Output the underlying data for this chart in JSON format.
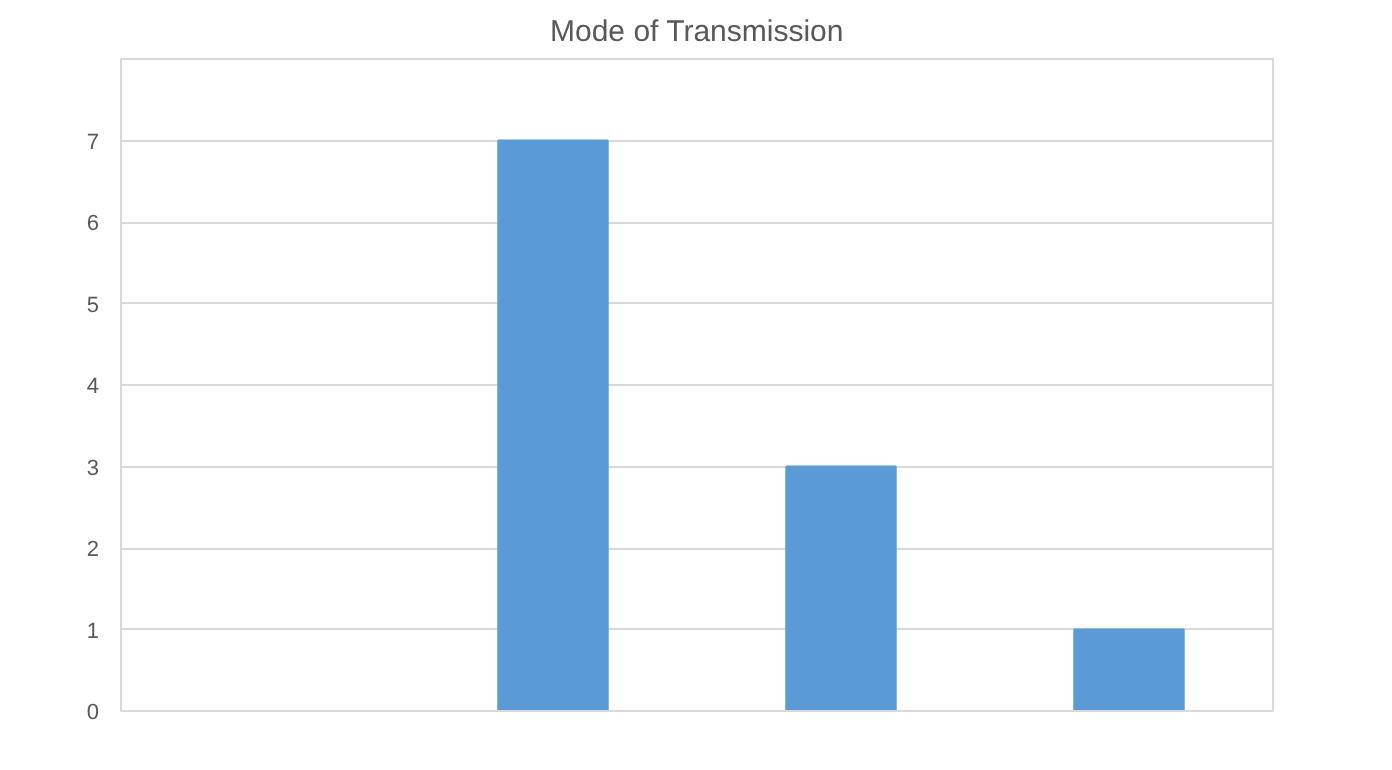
{
  "chart_data": {
    "type": "bar",
    "title": "Mode of Transmission",
    "categories": [
      null,
      null,
      null,
      null
    ],
    "values": [
      0,
      7,
      3,
      1
    ],
    "color": "#5b9bd5",
    "ylim": [
      0,
      8
    ],
    "yticks": [
      0,
      1,
      2,
      3,
      4,
      5,
      6,
      7,
      {
        "value": 8,
        "label": null
      }
    ],
    "grid": "y"
  }
}
